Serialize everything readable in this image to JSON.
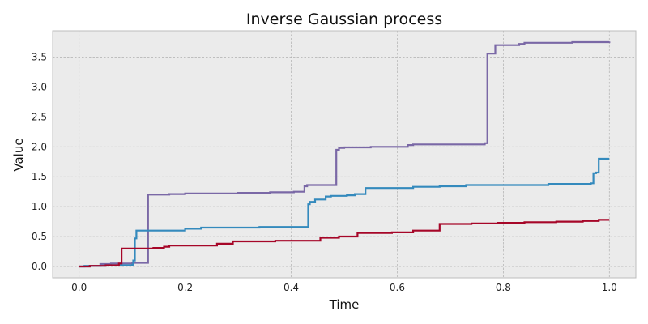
{
  "chart_data": {
    "type": "line",
    "step": true,
    "title": "Inverse Gaussian process",
    "xlabel": "Time",
    "ylabel": "Value",
    "xlim": [
      -0.05,
      1.05
    ],
    "ylim": [
      -0.19,
      3.94
    ],
    "xticks": [
      0.0,
      0.2,
      0.4,
      0.6,
      0.8,
      1.0
    ],
    "xtick_labels": [
      "0.0",
      "0.2",
      "0.4",
      "0.6",
      "0.8",
      "1.0"
    ],
    "yticks": [
      0.0,
      0.5,
      1.0,
      1.5,
      2.0,
      2.5,
      3.0,
      3.5
    ],
    "ytick_labels": [
      "0.0",
      "0.5",
      "1.0",
      "1.5",
      "2.0",
      "2.5",
      "3.0",
      "3.5"
    ],
    "grid": true,
    "legend": null,
    "colors": {
      "background": "#ebebeb",
      "grid": "#b0b0b0",
      "spine": "#bcbcbc"
    },
    "series": [
      {
        "color": "#7a68a6",
        "x": [
          0.0,
          0.02,
          0.04,
          0.06,
          0.1,
          0.13,
          0.17,
          0.2,
          0.3,
          0.36,
          0.405,
          0.425,
          0.43,
          0.485,
          0.49,
          0.5,
          0.55,
          0.62,
          0.63,
          0.765,
          0.77,
          0.785,
          0.83,
          0.84,
          0.93,
          1.0
        ],
        "y": [
          0.0,
          0.01,
          0.04,
          0.05,
          0.06,
          1.2,
          1.21,
          1.22,
          1.23,
          1.24,
          1.25,
          1.34,
          1.36,
          1.95,
          1.98,
          1.99,
          2.0,
          2.03,
          2.04,
          2.06,
          3.56,
          3.7,
          3.72,
          3.74,
          3.75,
          3.76
        ]
      },
      {
        "color": "#348abd",
        "x": [
          0.0,
          0.01,
          0.05,
          0.1,
          0.102,
          0.105,
          0.108,
          0.2,
          0.23,
          0.34,
          0.43,
          0.432,
          0.435,
          0.445,
          0.465,
          0.475,
          0.505,
          0.52,
          0.54,
          0.63,
          0.68,
          0.73,
          0.885,
          0.965,
          0.97,
          0.975,
          0.98,
          1.0
        ],
        "y": [
          0.0,
          0.01,
          0.02,
          0.03,
          0.1,
          0.47,
          0.6,
          0.63,
          0.65,
          0.66,
          0.66,
          1.04,
          1.08,
          1.12,
          1.17,
          1.18,
          1.19,
          1.21,
          1.31,
          1.33,
          1.34,
          1.36,
          1.38,
          1.39,
          1.56,
          1.57,
          1.8,
          1.8
        ]
      },
      {
        "color": "#a60628",
        "x": [
          0.0,
          0.02,
          0.05,
          0.075,
          0.08,
          0.14,
          0.16,
          0.17,
          0.26,
          0.29,
          0.33,
          0.37,
          0.405,
          0.455,
          0.49,
          0.525,
          0.59,
          0.63,
          0.68,
          0.74,
          0.79,
          0.84,
          0.9,
          0.95,
          0.98,
          1.0
        ],
        "y": [
          0.0,
          0.01,
          0.02,
          0.05,
          0.3,
          0.31,
          0.33,
          0.35,
          0.38,
          0.42,
          0.42,
          0.43,
          0.43,
          0.48,
          0.5,
          0.56,
          0.57,
          0.6,
          0.71,
          0.72,
          0.73,
          0.74,
          0.75,
          0.76,
          0.78,
          0.78
        ]
      }
    ]
  }
}
